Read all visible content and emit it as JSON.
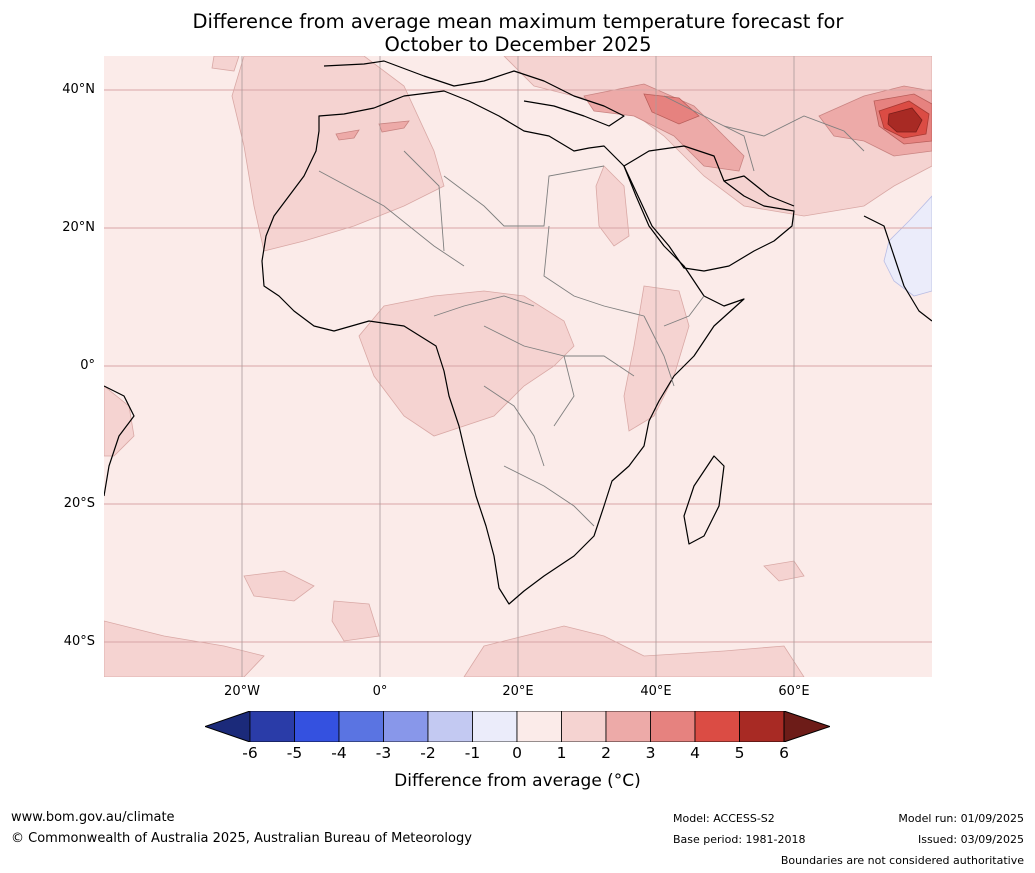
{
  "title_line1": "Difference from average mean maximum temperature forecast for",
  "title_line2": "October to December 2025",
  "lat_labels": [
    "40°N",
    "20°N",
    "0°",
    "20°S",
    "40°S"
  ],
  "lon_labels": [
    "20°W",
    "0°",
    "20°E",
    "40°E",
    "60°E"
  ],
  "colorbar": {
    "ticks": [
      "-6",
      "-5",
      "-4",
      "-3",
      "-2",
      "-1",
      "0",
      "1",
      "2",
      "3",
      "4",
      "5",
      "6"
    ],
    "colors": [
      "#1b2a7a",
      "#2a3ca8",
      "#3451e0",
      "#5a74e2",
      "#8897ea",
      "#c3c9f2",
      "#ebecfa",
      "#fbebe9",
      "#f5d3d1",
      "#edaaa8",
      "#e6827f",
      "#db4c44",
      "#a82a24",
      "#6d1c18"
    ],
    "label": "Difference from average ($^\\circ$C)",
    "label_text": "Difference from average (°C)"
  },
  "footer": {
    "website": "www.bom.gov.au/climate",
    "copyright": "© Commonwealth of Australia 2025, Australian Bureau of Meteorology",
    "model": "Model: ACCESS-S2",
    "base_period": "Base period: 1981-2018",
    "model_run": "Model run: 01/09/2025",
    "issued": "Issued: 03/09/2025",
    "disclaimer": "Boundaries are not considered authoritative"
  }
}
